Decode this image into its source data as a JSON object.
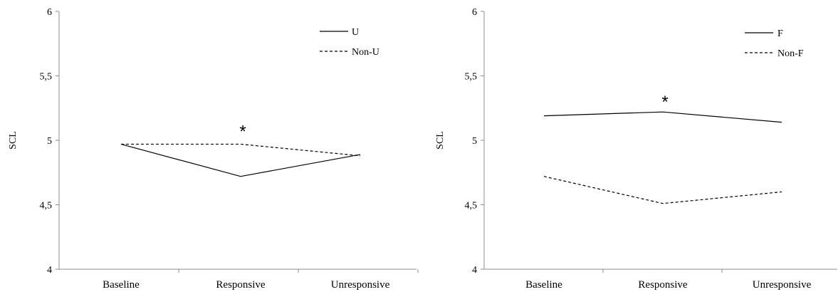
{
  "chart_data": [
    {
      "type": "line",
      "title": "",
      "xlabel": "",
      "ylabel": "SCL",
      "ylim": [
        4,
        6
      ],
      "yticks": [
        "4",
        "4,5",
        "5",
        "5,5",
        "6"
      ],
      "ytick_values": [
        4,
        4.5,
        5,
        5.5,
        6
      ],
      "categories": [
        "Baseline",
        "Responsive",
        "Unresponsive"
      ],
      "grid": false,
      "legend_position": "top-right",
      "series": [
        {
          "name": "U",
          "style": "solid",
          "values": [
            4.97,
            4.72,
            4.89
          ]
        },
        {
          "name": "Non-U",
          "style": "dashed",
          "values": [
            4.97,
            4.97,
            4.88
          ]
        }
      ],
      "annotations": [
        {
          "text": "*",
          "category": "Responsive",
          "y": 5.08
        }
      ],
      "line_color": "#000000"
    },
    {
      "type": "line",
      "title": "",
      "xlabel": "",
      "ylabel": "SCL",
      "ylim": [
        4,
        6
      ],
      "yticks": [
        "4",
        "4,5",
        "5",
        "5,5",
        "6"
      ],
      "ytick_values": [
        4,
        4.5,
        5,
        5.5,
        6
      ],
      "categories": [
        "Baseline",
        "Responsive",
        "Unresponsive"
      ],
      "grid": false,
      "legend_position": "top-right",
      "series": [
        {
          "name": "F",
          "style": "solid",
          "values": [
            5.19,
            5.22,
            5.14
          ]
        },
        {
          "name": "Non-F",
          "style": "dashed",
          "values": [
            4.72,
            4.51,
            4.6
          ]
        }
      ],
      "annotations": [
        {
          "text": "*",
          "category": "Responsive",
          "y": 5.31
        }
      ],
      "line_color": "#000000"
    }
  ]
}
